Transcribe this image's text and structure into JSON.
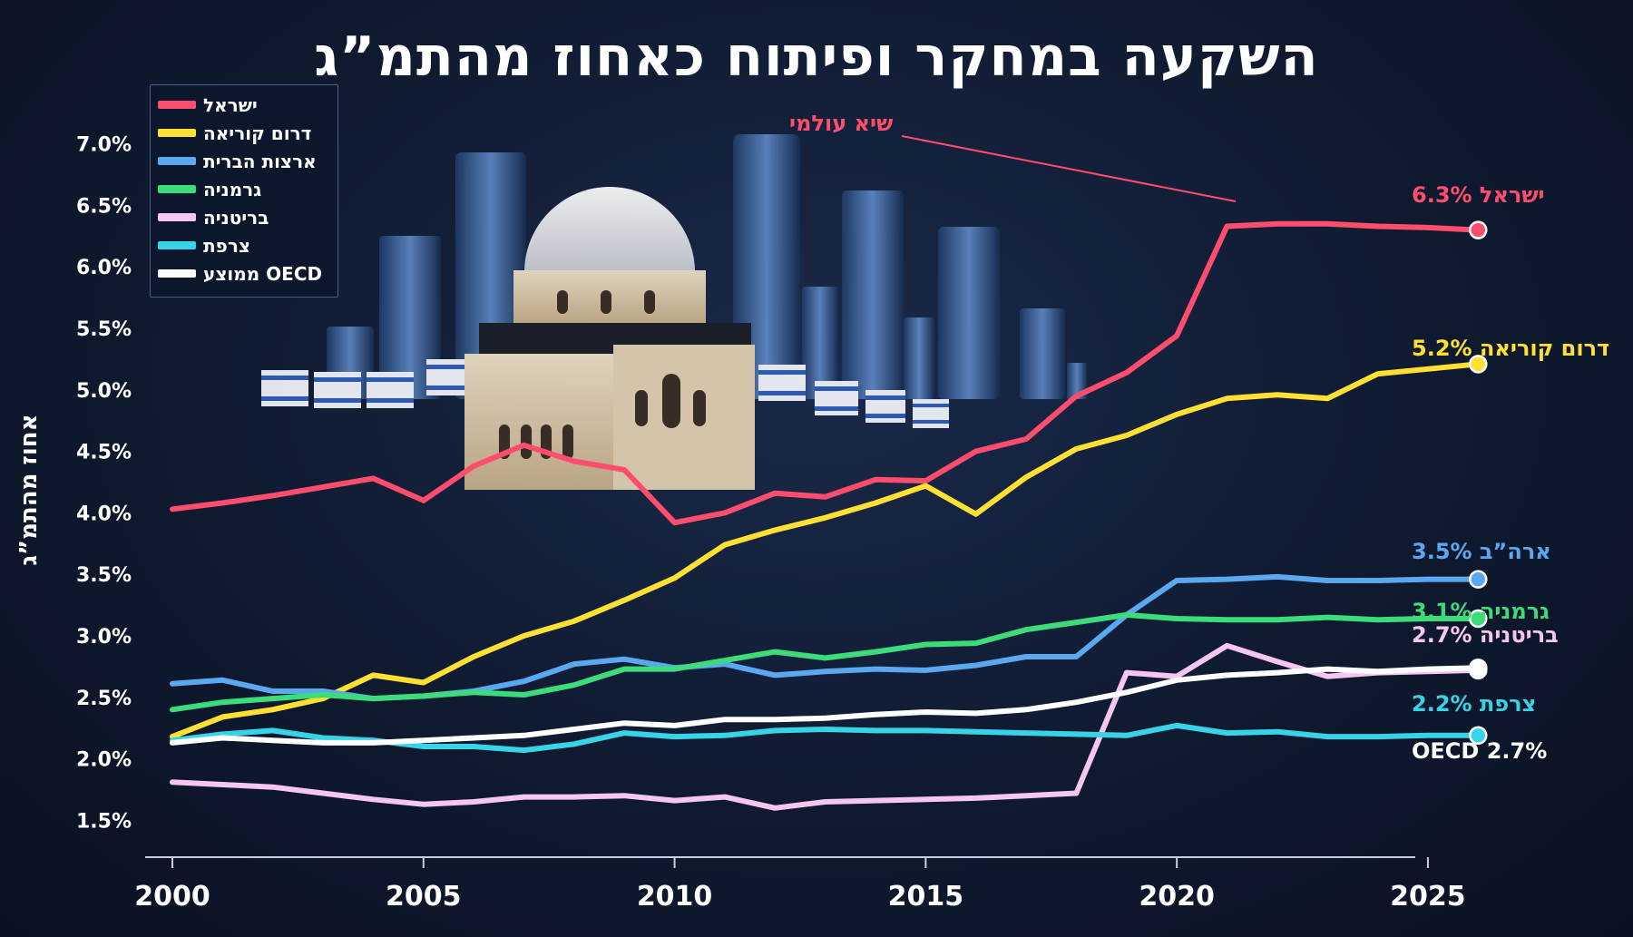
{
  "title": "השקעה במחקר ופיתוח כאחוז מהתמ”ג",
  "annotation": "שיא עולמי",
  "chart_data": {
    "type": "line",
    "title": "השקעה במחקר ופיתוח כאחוז מהתמ”ג",
    "xlabel": "",
    "ylabel": "אחוז מהתמ”ג",
    "xlim": [
      2000,
      2028
    ],
    "ylim": [
      1.2,
      7.3
    ],
    "x_ticks": [
      2000,
      2005,
      2010,
      2015,
      2020,
      2025
    ],
    "y_ticks": [
      1.5,
      2.0,
      2.5,
      3.0,
      3.5,
      4.0,
      4.5,
      5.0,
      5.5,
      6.0,
      6.5,
      7.0
    ],
    "y_tick_labels": [
      "1.5%",
      "2.0%",
      "2.5%",
      "3.0%",
      "3.5%",
      "4.0%",
      "4.5%",
      "5.0%",
      "5.5%",
      "6.0%",
      "6.5%",
      "7.0%"
    ],
    "x_tick_labels": [
      "2000",
      "2005",
      "2010",
      "2015",
      "2020",
      "2025"
    ],
    "legend_position": "top-left",
    "grid": false,
    "x": [
      2000,
      2001,
      2002,
      2003,
      2004,
      2005,
      2006,
      2007,
      2008,
      2009,
      2010,
      2011,
      2012,
      2013,
      2014,
      2015,
      2016,
      2017,
      2018,
      2019,
      2020,
      2021,
      2022,
      2023,
      2024,
      2025,
      2026
    ],
    "series": [
      {
        "name": "ישראל",
        "color": "#ff4d6d",
        "end_label": "ישראל  6.3%",
        "values": [
          4.03,
          4.08,
          4.14,
          4.21,
          4.28,
          4.1,
          4.38,
          4.55,
          4.42,
          4.35,
          3.92,
          4.0,
          4.16,
          4.13,
          4.27,
          4.26,
          4.5,
          4.6,
          4.95,
          5.14,
          5.44,
          6.33,
          6.35,
          6.35,
          6.33,
          6.32,
          6.3
        ]
      },
      {
        "name": "דרום קוריאה",
        "color": "#ffe033",
        "end_label": "דרום קוריאה  5.2%",
        "values": [
          2.18,
          2.34,
          2.4,
          2.49,
          2.68,
          2.62,
          2.83,
          3.0,
          3.12,
          3.29,
          3.47,
          3.74,
          3.86,
          3.96,
          4.08,
          4.22,
          3.99,
          4.29,
          4.52,
          4.63,
          4.8,
          4.93,
          4.96,
          4.93,
          5.13,
          5.17,
          5.21
        ]
      },
      {
        "name": "ארצות הברית",
        "color": "#5aa9f0",
        "end_label": "ארה”ב  3.5%",
        "values": [
          2.61,
          2.64,
          2.55,
          2.55,
          2.49,
          2.51,
          2.55,
          2.63,
          2.77,
          2.81,
          2.74,
          2.77,
          2.68,
          2.71,
          2.73,
          2.72,
          2.76,
          2.83,
          2.83,
          3.17,
          3.45,
          3.46,
          3.48,
          3.45,
          3.45,
          3.46,
          3.46
        ]
      },
      {
        "name": "גרמניה",
        "color": "#3ddc7a",
        "end_label": "גרמניה  3.1%",
        "values": [
          2.4,
          2.46,
          2.49,
          2.52,
          2.49,
          2.51,
          2.54,
          2.52,
          2.6,
          2.73,
          2.73,
          2.8,
          2.87,
          2.82,
          2.87,
          2.93,
          2.94,
          3.05,
          3.11,
          3.17,
          3.14,
          3.13,
          3.13,
          3.15,
          3.13,
          3.14,
          3.14
        ]
      },
      {
        "name": "בריטניה",
        "color": "#f5c6f0",
        "end_label": "בריטניה  2.7%",
        "values": [
          1.81,
          1.79,
          1.77,
          1.72,
          1.67,
          1.63,
          1.65,
          1.69,
          1.69,
          1.7,
          1.66,
          1.69,
          1.6,
          1.65,
          1.66,
          1.67,
          1.68,
          1.7,
          1.72,
          2.7,
          2.67,
          2.92,
          2.79,
          2.67,
          2.7,
          2.71,
          2.72
        ]
      },
      {
        "name": "צרפת",
        "color": "#37d4e8",
        "end_label": "צרפת  2.2%",
        "values": [
          2.15,
          2.2,
          2.23,
          2.17,
          2.15,
          2.1,
          2.1,
          2.07,
          2.12,
          2.21,
          2.18,
          2.19,
          2.23,
          2.24,
          2.23,
          2.23,
          2.22,
          2.21,
          2.2,
          2.19,
          2.27,
          2.21,
          2.22,
          2.18,
          2.18,
          2.19,
          2.19
        ]
      },
      {
        "name": "ממוצע OECD",
        "color": "#ffffff",
        "end_label": "OECD  2.7%",
        "values": [
          2.13,
          2.17,
          2.15,
          2.13,
          2.13,
          2.15,
          2.17,
          2.19,
          2.24,
          2.29,
          2.27,
          2.32,
          2.32,
          2.33,
          2.36,
          2.38,
          2.37,
          2.4,
          2.46,
          2.54,
          2.64,
          2.68,
          2.7,
          2.73,
          2.71,
          2.73,
          2.74
        ]
      }
    ]
  }
}
